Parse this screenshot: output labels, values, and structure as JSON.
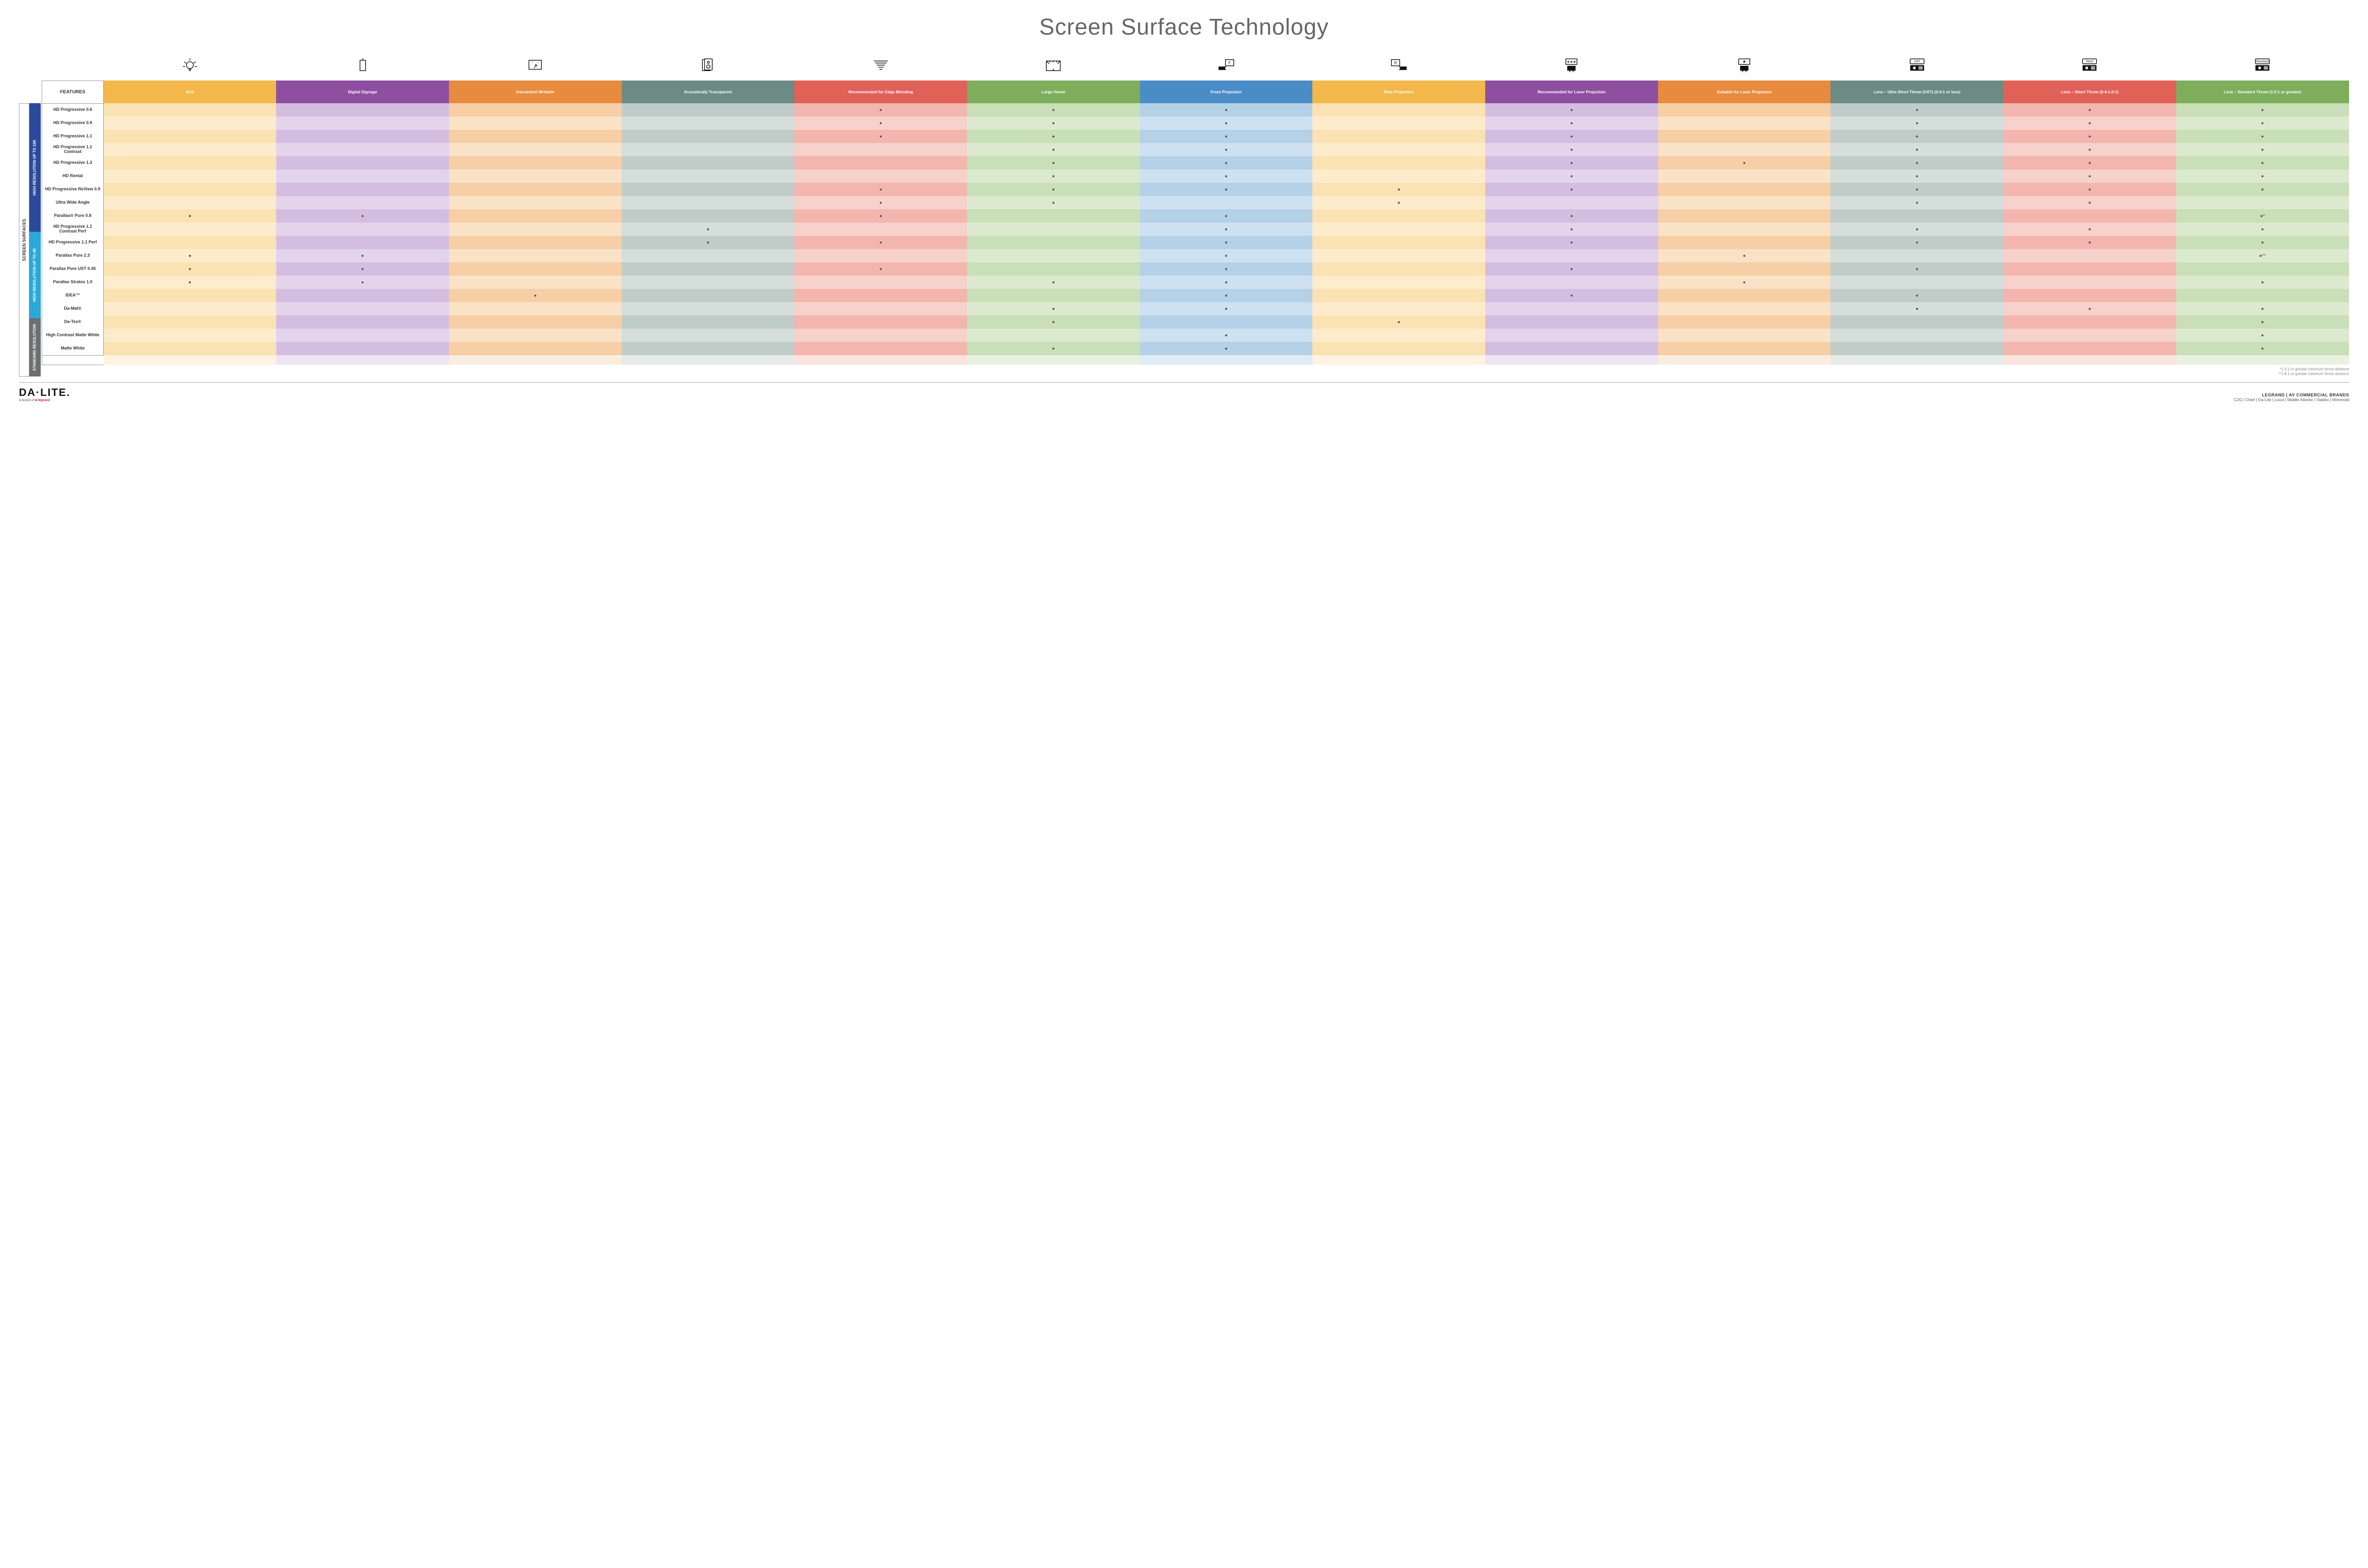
{
  "title": "Screen Surface Technology",
  "featuresHeader": "FEATURES",
  "colors": {
    "columns": [
      "#f2b84c",
      "#8e4fa0",
      "#e78b3e",
      "#6b8b84",
      "#e06158",
      "#7eae5c",
      "#4a8dc6",
      "#f2b84c",
      "#8e4fa0",
      "#e78b3e",
      "#6b8b84",
      "#e06158",
      "#7eae5c"
    ],
    "lightA": [
      "#fbe2b2",
      "#d3bde0",
      "#f6cfa7",
      "#c0ccc8",
      "#f2b6af",
      "#c9dfb7",
      "#b5d1e8",
      "#fbe2b2",
      "#d3bde0",
      "#f6cfa7",
      "#c0ccc8",
      "#f2b6af",
      "#c9dfb7"
    ],
    "lightB": [
      "#fdeccc",
      "#e3d4ec",
      "#fae2c7",
      "#d6dedb",
      "#f7d1cc",
      "#dbeace",
      "#cde1f0",
      "#fdeccc",
      "#e3d4ec",
      "#fae2c7",
      "#d6dedb",
      "#f7d1cc",
      "#dbeace"
    ],
    "groups": [
      "#2b4a9b",
      "#2aa8d8",
      "#6d6e71"
    ]
  },
  "columns": [
    "ALR",
    "Digital Signage",
    "Interactive/ Writable",
    "Acoustically Transparent",
    "Recommended for Edge Blending",
    "Large Venue",
    "Front Projection",
    "Rear Projection",
    "Recommended for Laser Projection",
    "Suitable for Laser Projection",
    "Lens – Ultra Short Throw (UST) (0.4:1 or less)",
    "Lens – Short Throw (0.4-1.0:1)",
    "Lens – Standard Throw (1.0:1 or greater)"
  ],
  "sideOuter": "SCREEN SURFACES",
  "groups": [
    {
      "label": "HIGH RESOLUTION UP TO 16K",
      "rows": 9
    },
    {
      "label": "HIGH RESOLUTION UP TO 4K",
      "rows": 6
    },
    {
      "label": "STANDARD RESOLUTION",
      "rows": 4
    }
  ],
  "rows": [
    {
      "label": "HD Progressive 0.6",
      "cells": [
        "",
        "",
        "",
        "",
        "●",
        "●",
        "●",
        "",
        "●",
        "",
        "●",
        "●",
        "●"
      ]
    },
    {
      "label": "HD Progressive 0.9",
      "cells": [
        "",
        "",
        "",
        "",
        "●",
        "●",
        "●",
        "",
        "●",
        "",
        "●",
        "●",
        "●"
      ]
    },
    {
      "label": "HD Progressive 1.1",
      "cells": [
        "",
        "",
        "",
        "",
        "●",
        "●",
        "●",
        "",
        "●",
        "",
        "●",
        "●",
        "●"
      ]
    },
    {
      "label": "HD Progressive 1.1 Contrast",
      "cells": [
        "",
        "",
        "",
        "",
        "",
        "●",
        "●",
        "",
        "●",
        "",
        "●",
        "●",
        "●"
      ]
    },
    {
      "label": "HD Progressive 1.3",
      "cells": [
        "",
        "",
        "",
        "",
        "",
        "●",
        "●",
        "",
        "●",
        "●",
        "●",
        "●",
        "●"
      ]
    },
    {
      "label": "HD Rental",
      "cells": [
        "",
        "",
        "",
        "",
        "",
        "●",
        "●",
        "",
        "●",
        "",
        "●",
        "●",
        "●"
      ]
    },
    {
      "label": "HD Progressive ReView 0.9",
      "cells": [
        "",
        "",
        "",
        "",
        "●",
        "●",
        "●",
        "●",
        "●",
        "",
        "●",
        "●",
        "●"
      ]
    },
    {
      "label": "Ultra Wide Angle",
      "cells": [
        "",
        "",
        "",
        "",
        "●",
        "●",
        "",
        "●",
        "",
        "",
        "●",
        "●",
        ""
      ]
    },
    {
      "label": "Parallax® Pure 0.8",
      "cells": [
        "●",
        "●",
        "",
        "",
        "●",
        "",
        "●",
        "",
        "●",
        "",
        "",
        "",
        "●*"
      ]
    },
    {
      "label": "HD Progressive 1.1 Contrast Perf",
      "cells": [
        "",
        "",
        "",
        "●",
        "",
        "",
        "●",
        "",
        "●",
        "",
        "●",
        "●",
        "●"
      ]
    },
    {
      "label": "HD Progressive 1.1 Perf",
      "cells": [
        "",
        "",
        "",
        "●",
        "●",
        "",
        "●",
        "",
        "●",
        "",
        "●",
        "●",
        "●"
      ]
    },
    {
      "label": "Parallax Pure 2.3",
      "cells": [
        "●",
        "●",
        "",
        "",
        "",
        "",
        "●",
        "",
        "",
        "●",
        "",
        "",
        "●**"
      ]
    },
    {
      "label": "Parallax Pure UST 0.45",
      "cells": [
        "●",
        "●",
        "",
        "",
        "●",
        "",
        "●",
        "",
        "●",
        "",
        "●",
        "",
        ""
      ]
    },
    {
      "label": "Parallax Stratos 1.0",
      "cells": [
        "●",
        "●",
        "",
        "",
        "",
        "●",
        "●",
        "",
        "",
        "●",
        "",
        "",
        "●"
      ]
    },
    {
      "label": "IDEA™",
      "cells": [
        "",
        "",
        "●",
        "",
        "",
        "",
        "●",
        "",
        "●",
        "",
        "●",
        "",
        ""
      ]
    },
    {
      "label": "Da-Mat®",
      "cells": [
        "",
        "",
        "",
        "",
        "",
        "●",
        "●",
        "",
        "",
        "",
        "●",
        "●",
        "●"
      ]
    },
    {
      "label": "Da-Tex®",
      "cells": [
        "",
        "",
        "",
        "",
        "",
        "●",
        "",
        "●",
        "",
        "",
        "",
        "",
        "●"
      ]
    },
    {
      "label": "High Contrast Matte White",
      "cells": [
        "",
        "",
        "",
        "",
        "",
        "",
        "●",
        "",
        "",
        "",
        "",
        "",
        "●"
      ]
    },
    {
      "label": "Matte White",
      "cells": [
        "",
        "",
        "",
        "",
        "",
        "●",
        "●",
        "",
        "",
        "",
        "",
        "",
        "●"
      ]
    }
  ],
  "footnotes": [
    "*1.5:1 or greater minimum throw distance",
    "**1.8:1 or greater minimum throw distance"
  ],
  "footer": {
    "logo": "DA·LITE.",
    "logoSubPrefix": "A brand of ",
    "logoSubBrand": "legrand",
    "rightTop": "LEGRAND | AV COMMERCIAL BRANDS",
    "brands": "C2G  |  Chief  |  Da-Lite  |  Luxul  |  Middle Atlantic  |  Vaddio  |  Wiremold"
  },
  "iconLabels": [
    "UST",
    "Short",
    "Standard"
  ]
}
